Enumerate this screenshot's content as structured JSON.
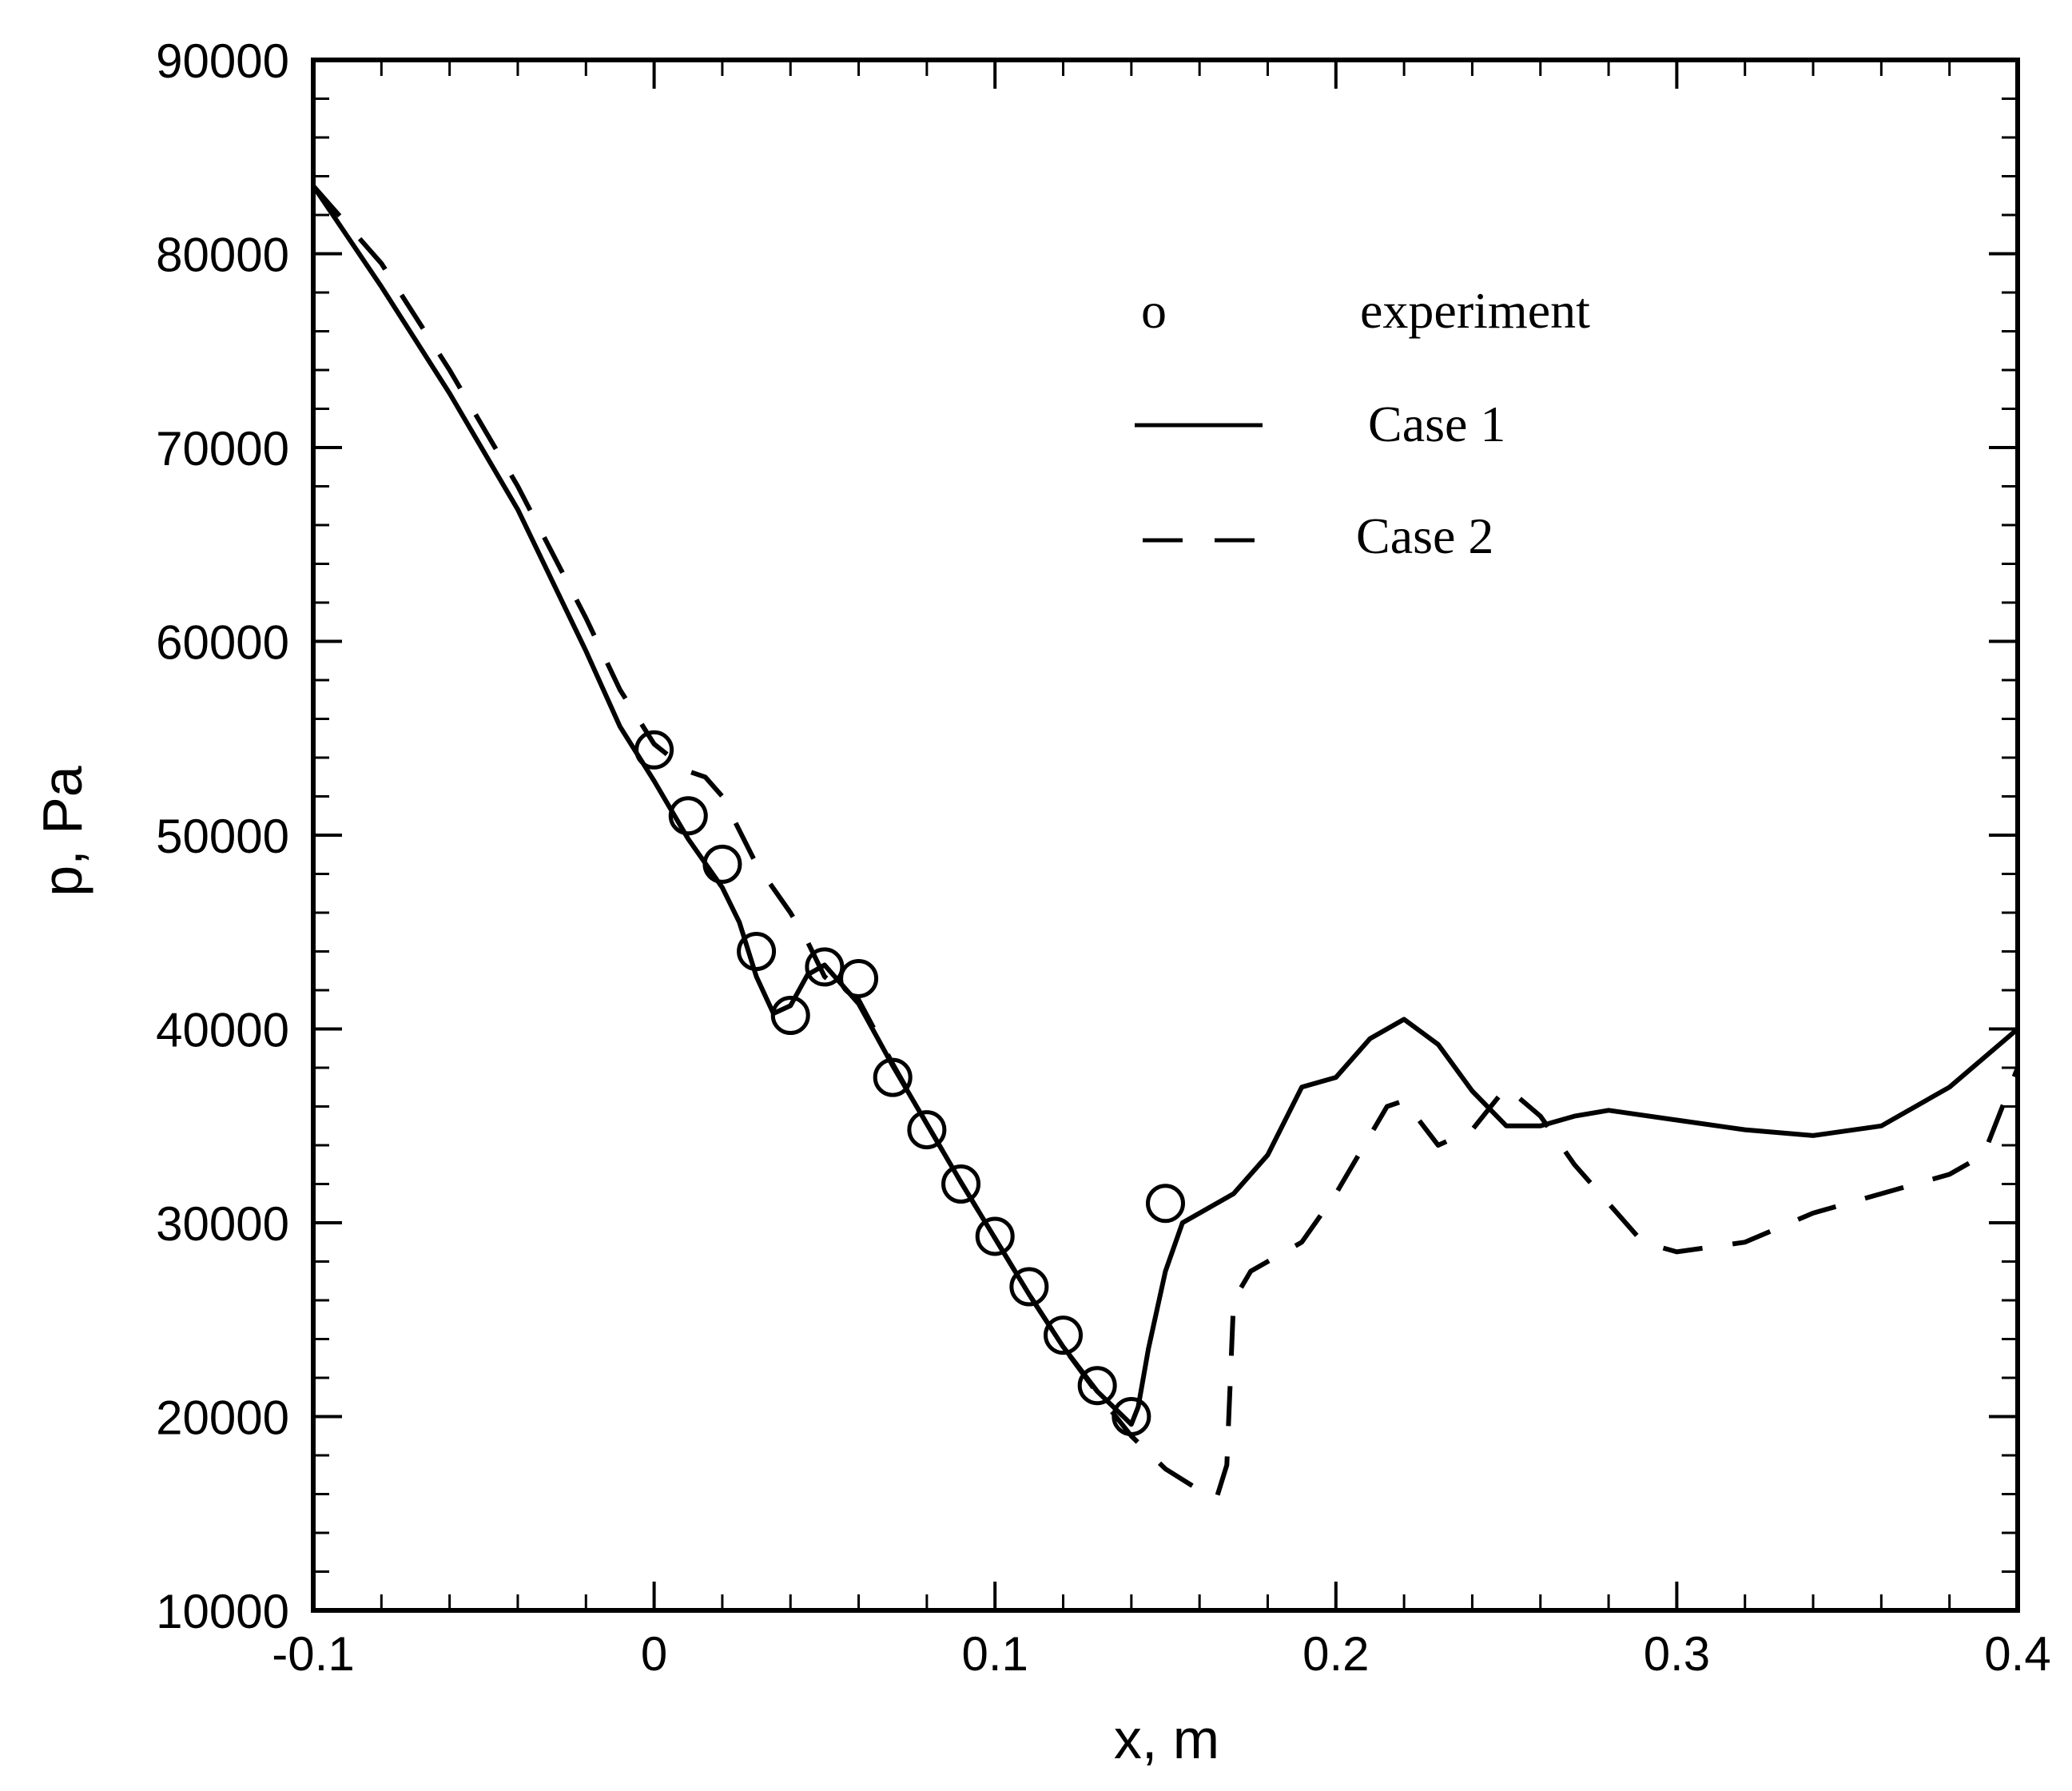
{
  "chart_data": {
    "type": "line",
    "title": "",
    "xlabel": "x, m",
    "ylabel": "p, Pa",
    "xlim": [
      -0.1,
      0.4
    ],
    "ylim": [
      10000,
      90000
    ],
    "x_ticks": [
      -0.1,
      0,
      0.1,
      0.2,
      0.3,
      0.4
    ],
    "x_tick_labels": [
      "-0.1",
      "0",
      "0.1",
      "0.2",
      "0.3",
      "0.4"
    ],
    "y_ticks": [
      10000,
      20000,
      30000,
      40000,
      50000,
      60000,
      70000,
      80000,
      90000
    ],
    "y_tick_labels": [
      "10000",
      "20000",
      "30000",
      "40000",
      "50000",
      "60000",
      "70000",
      "80000",
      "90000"
    ],
    "grid": false,
    "legend_position": "top-right",
    "legend": [
      {
        "symbol": "o",
        "label": "experiment"
      },
      {
        "symbol": "solid",
        "label": "Case 1"
      },
      {
        "symbol": "dashed",
        "label": "Case 2"
      }
    ],
    "series": [
      {
        "name": "experiment",
        "kind": "markers",
        "x": [
          0.0,
          0.01,
          0.02,
          0.03,
          0.04,
          0.05,
          0.06,
          0.07,
          0.08,
          0.09,
          0.1,
          0.11,
          0.12,
          0.13,
          0.14,
          0.15
        ],
        "y": [
          54400,
          51000,
          48500,
          44000,
          40700,
          43200,
          42600,
          37500,
          34800,
          32000,
          29300,
          26700,
          24200,
          21600,
          20000,
          31000
        ]
      },
      {
        "name": "Case 1",
        "kind": "solid",
        "x": [
          -0.1,
          -0.08,
          -0.06,
          -0.04,
          -0.02,
          -0.01,
          0.0,
          0.01,
          0.02,
          0.025,
          0.03,
          0.035,
          0.04,
          0.045,
          0.05,
          0.06,
          0.07,
          0.08,
          0.09,
          0.1,
          0.11,
          0.12,
          0.13,
          0.14,
          0.142,
          0.145,
          0.15,
          0.155,
          0.16,
          0.17,
          0.18,
          0.19,
          0.2,
          0.21,
          0.22,
          0.23,
          0.24,
          0.25,
          0.26,
          0.27,
          0.28,
          0.3,
          0.32,
          0.34,
          0.36,
          0.38,
          0.4
        ],
        "y": [
          83500,
          78300,
          72800,
          66800,
          59500,
          55600,
          52800,
          49800,
          47300,
          45500,
          42700,
          40800,
          41200,
          42800,
          43300,
          41300,
          38100,
          35100,
          32100,
          29200,
          26300,
          23600,
          21300,
          19600,
          20500,
          23500,
          27500,
          30000,
          30500,
          31500,
          33500,
          37000,
          37500,
          39500,
          40500,
          39200,
          36800,
          35000,
          35000,
          35500,
          35800,
          35300,
          34800,
          34500,
          35000,
          37000,
          40000
        ]
      },
      {
        "name": "Case 2",
        "kind": "dashed",
        "x": [
          -0.1,
          -0.08,
          -0.06,
          -0.04,
          -0.02,
          -0.01,
          0.0,
          0.01,
          0.015,
          0.02,
          0.03,
          0.04,
          0.045,
          0.05,
          0.055,
          0.06,
          0.07,
          0.08,
          0.09,
          0.1,
          0.11,
          0.12,
          0.13,
          0.14,
          0.15,
          0.16,
          0.165,
          0.168,
          0.17,
          0.175,
          0.18,
          0.19,
          0.2,
          0.21,
          0.215,
          0.22,
          0.23,
          0.24,
          0.25,
          0.26,
          0.27,
          0.28,
          0.29,
          0.3,
          0.32,
          0.34,
          0.36,
          0.38,
          0.39,
          0.4
        ],
        "y": [
          83500,
          79500,
          74000,
          68000,
          61200,
          57500,
          54700,
          53300,
          53000,
          52000,
          48500,
          46000,
          44500,
          42700,
          42000,
          41500,
          38200,
          35100,
          32100,
          29200,
          26300,
          23600,
          21200,
          19000,
          17300,
          16200,
          15800,
          17500,
          26000,
          27500,
          28000,
          29000,
          31500,
          34500,
          36000,
          36300,
          34000,
          34800,
          37000,
          35500,
          33000,
          31000,
          29000,
          28500,
          29000,
          30500,
          31500,
          32500,
          33500,
          38000
        ]
      }
    ]
  }
}
